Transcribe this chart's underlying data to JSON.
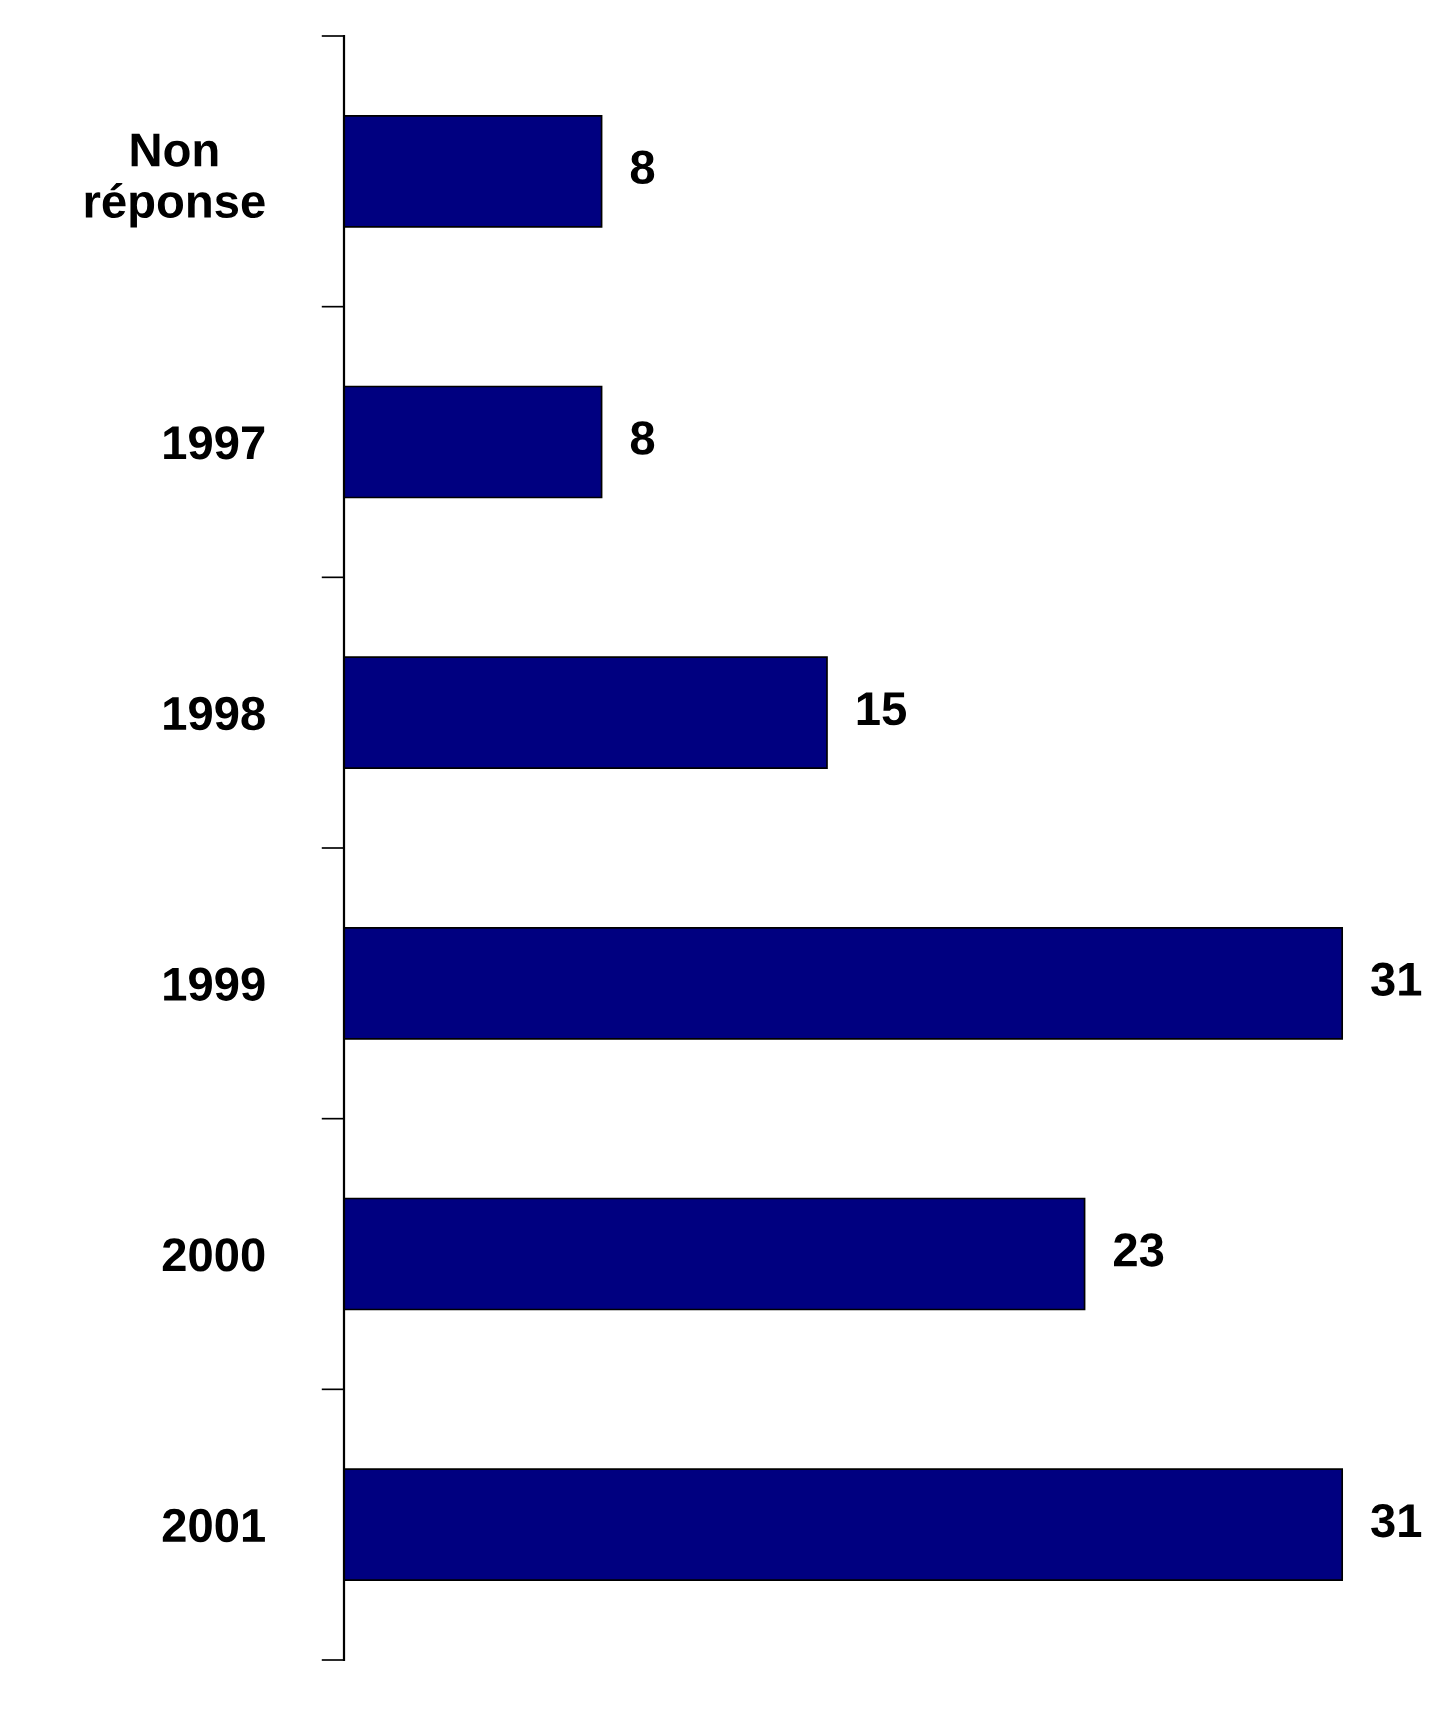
{
  "chart_data": {
    "type": "bar",
    "orientation": "horizontal",
    "categories": [
      "Non\nréponse",
      "1997",
      "1998",
      "1999",
      "2000",
      "2001"
    ],
    "values": [
      8,
      8,
      15,
      31,
      23,
      31
    ],
    "color": "#000080",
    "data_labels": true,
    "grid": false,
    "legend": false
  }
}
